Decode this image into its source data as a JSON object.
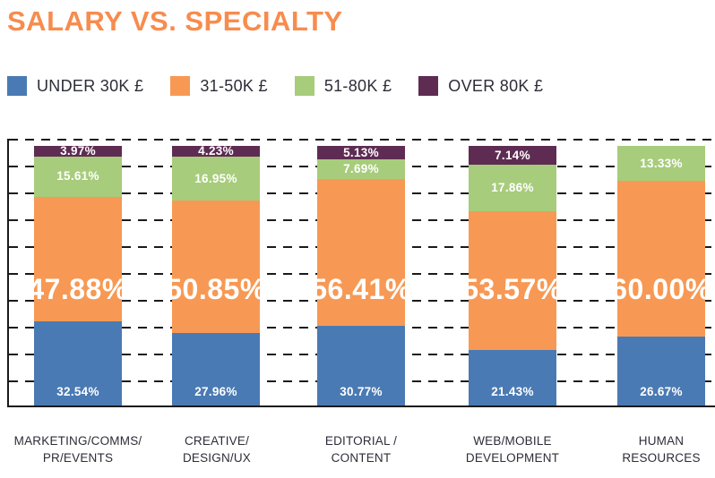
{
  "title": "SALARY VS. SPECIALTY",
  "colors": {
    "title": "#F78C4E",
    "under_30k": "#4A7AB3",
    "k31_50": "#F79954",
    "k51_80": "#A7CC7B",
    "over_80k": "#5E2C53",
    "gridline": "#1A1A1A",
    "label_text": "#2D2D38",
    "value_text": "#FFFFFF"
  },
  "legend": {
    "items": [
      {
        "label": "UNDER 30K £",
        "color": "#4A7AB3"
      },
      {
        "label": "31-50K £",
        "color": "#F79954"
      },
      {
        "label": "51-80K £",
        "color": "#A7CC7B"
      },
      {
        "label": "OVER 80K £",
        "color": "#5E2C53"
      }
    ]
  },
  "chart_data": {
    "type": "bar",
    "variant": "stacked-100-percent",
    "title": "SALARY VS. SPECIALTY",
    "unit": "%",
    "ylim": [
      0,
      100
    ],
    "grid": "horizontal-dashed",
    "legend_position": "top",
    "categories": [
      "MARKETING/COMMS/PR/EVENTS",
      "CREATIVE/DESIGN/UX",
      "EDITORIAL / CONTENT",
      "WEB/MOBILE DEVELOPMENT",
      "HUMAN RESOURCES"
    ],
    "series": [
      {
        "name": "UNDER 30K £",
        "color": "#4A7AB3",
        "values": [
          32.54,
          27.96,
          30.77,
          21.43,
          26.67
        ]
      },
      {
        "name": "31-50K £",
        "color": "#F79954",
        "values": [
          47.88,
          50.85,
          56.41,
          53.57,
          60.0
        ]
      },
      {
        "name": "51-80K £",
        "color": "#A7CC7B",
        "values": [
          15.61,
          16.95,
          7.69,
          17.86,
          13.33
        ]
      },
      {
        "name": "OVER 80K £",
        "color": "#5E2C53",
        "values": [
          3.97,
          4.23,
          5.13,
          7.14,
          0
        ]
      }
    ]
  },
  "bars": [
    {
      "category_line1": "MARKETING/COMMS/",
      "category_line2": "PR/EVENTS",
      "under30_label": "32.54%",
      "mid_label": "47.88%",
      "green_label": "15.61%",
      "top_label": "3.97%"
    },
    {
      "category_line1": "CREATIVE/",
      "category_line2": "DESIGN/UX",
      "under30_label": "27.96%",
      "mid_label": "50.85%",
      "green_label": "16.95%",
      "top_label": "4.23%"
    },
    {
      "category_line1": "EDITORIAL /",
      "category_line2": "CONTENT",
      "under30_label": "30.77%",
      "mid_label": "56.41%",
      "green_label": "7.69%",
      "top_label": "5.13%"
    },
    {
      "category_line1": "WEB/MOBILE",
      "category_line2": "DEVELOPMENT",
      "under30_label": "21.43%",
      "mid_label": "53.57%",
      "green_label": "17.86%",
      "top_label": "7.14%"
    },
    {
      "category_line1": "HUMAN",
      "category_line2": "RESOURCES",
      "under30_label": "26.67%",
      "mid_label": "60.00%",
      "green_label": "13.33%",
      "top_label": ""
    }
  ]
}
